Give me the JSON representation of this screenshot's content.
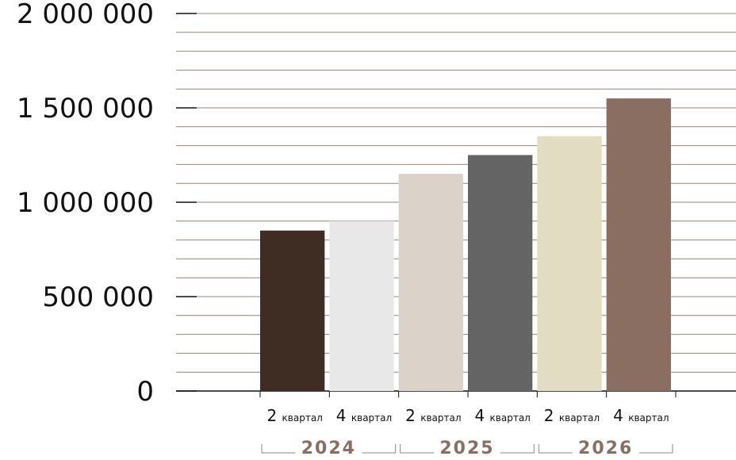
{
  "chart_data": {
    "type": "bar",
    "title": "",
    "xlabel": "",
    "ylabel": "",
    "ylim": [
      0,
      2000000
    ],
    "y_ticks": [
      {
        "value": 0,
        "label": "0"
      },
      {
        "value": 500000,
        "label": "500 000"
      },
      {
        "value": 1000000,
        "label": "1 000 000"
      },
      {
        "value": 1500000,
        "label": "1 500 000"
      },
      {
        "value": 2000000,
        "label": "2 000 000"
      }
    ],
    "grid": true,
    "categories": [
      {
        "number": "2",
        "word": "квартал",
        "year": "2024"
      },
      {
        "number": "4",
        "word": "квартал",
        "year": "2024"
      },
      {
        "number": "2",
        "word": "квартал",
        "year": "2025"
      },
      {
        "number": "4",
        "word": "квартал",
        "year": "2025"
      },
      {
        "number": "2",
        "word": "квартал",
        "year": "2026"
      },
      {
        "number": "4",
        "word": "квартал",
        "year": "2026"
      }
    ],
    "values": [
      850000,
      900000,
      1150000,
      1250000,
      1350000,
      1550000
    ],
    "colors": [
      "#3f2d23",
      "#e8e8e8",
      "#dbd2c9",
      "#646464",
      "#e2dcc3",
      "#8a6e62"
    ],
    "year_groups": [
      "2024",
      "2025",
      "2026"
    ],
    "grid_color": "#8a6e62",
    "year_color": "#8a6e62"
  }
}
